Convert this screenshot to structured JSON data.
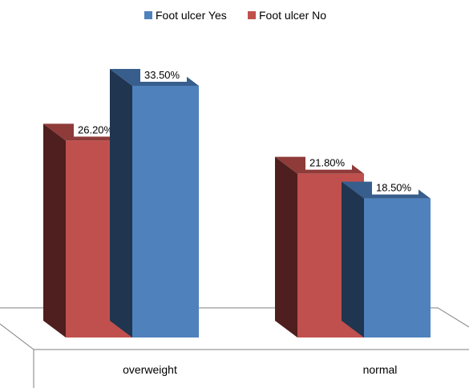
{
  "chart_data": {
    "type": "bar",
    "style": "3d-clustered-column",
    "categories": [
      "overweight",
      "normal"
    ],
    "series": [
      {
        "name": "Foot ulcer Yes",
        "values": [
          33.5,
          18.5
        ],
        "labels": [
          "33.50%",
          "18.50%"
        ],
        "color": "#4F81BD",
        "side_color": "#1F3550",
        "top_color": "#375E8C"
      },
      {
        "name": "Foot ulcer No",
        "values": [
          26.2,
          21.8
        ],
        "labels": [
          "26.20%",
          "21.80%"
        ],
        "color": "#C0504D",
        "side_color": "#4E1F1E",
        "top_color": "#8E3B39"
      }
    ],
    "legend_position": "top",
    "grid": false,
    "ylim": [
      0,
      40
    ]
  }
}
